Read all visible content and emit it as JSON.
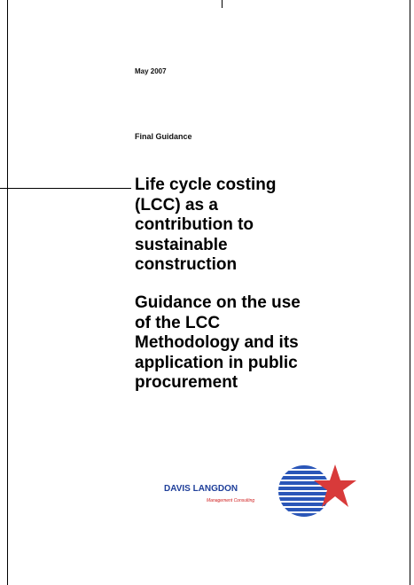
{
  "date": "May 2007",
  "kind": "Final Guidance",
  "title_lines": [
    "Life cycle costing",
    "(LCC) as a",
    "contribution to",
    "sustainable",
    "construction"
  ],
  "subtitle_lines": [
    "Guidance on the use",
    "of the LCC",
    "Methodology and its",
    "application in public",
    "procurement"
  ],
  "logo": {
    "name": "DAVIS LANGDON",
    "tagline": "Management Consulting"
  }
}
